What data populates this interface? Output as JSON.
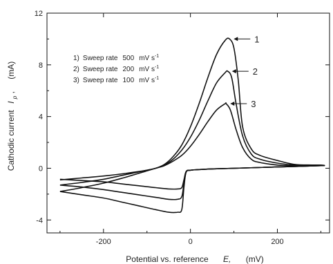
{
  "chart_data": {
    "type": "line",
    "title": "",
    "xlabel": {
      "text": "Potential vs. reference",
      "symbol": "E,",
      "unit": "(mV)"
    },
    "ylabel": {
      "text": "Cathodic current",
      "symbol": "I",
      "subscript": "p",
      "comma": ",",
      "unit": "(mA)"
    },
    "xlim": [
      -330,
      320
    ],
    "ylim": [
      -5,
      12
    ],
    "xticks": [
      -200,
      0,
      200
    ],
    "yticks": [
      -4,
      0,
      4,
      8,
      12
    ],
    "grid": false,
    "legend_position": "top-left",
    "legend": [
      {
        "number": "1)",
        "text": "Sweep rate",
        "value": "500",
        "unit": "mV s",
        "exp": "-1"
      },
      {
        "number": "2)",
        "text": "Sweep rate",
        "value": "200",
        "unit": "mV s",
        "exp": "-1"
      },
      {
        "number": "3)",
        "text": "Sweep rate",
        "value": "100",
        "unit": "mV s",
        "exp": "-1"
      }
    ],
    "annotations": [
      {
        "label": "1",
        "x": 90,
        "y": 10.0
      },
      {
        "label": "2",
        "x": 86,
        "y": 7.5
      },
      {
        "label": "3",
        "x": 82,
        "y": 5.0
      }
    ],
    "series": [
      {
        "forward": {
          "x": [
            -300,
            -250,
            -200,
            -150,
            -100,
            -80,
            -60,
            -40,
            -20,
            0,
            20,
            40,
            60,
            80,
            90,
            100,
            110,
            120,
            140,
            160,
            200,
            240,
            280,
            300
          ],
          "y": [
            -0.9,
            -0.75,
            -0.6,
            -0.4,
            -0.15,
            0.0,
            0.3,
            0.9,
            1.8,
            3.2,
            5.0,
            7.0,
            8.8,
            9.9,
            10.0,
            9.3,
            6.8,
            3.2,
            1.5,
            1.0,
            0.6,
            0.3,
            0.25,
            0.25
          ]
        },
        "reverse": {
          "x": [
            300,
            200,
            100,
            50,
            20,
            0,
            -10,
            -15,
            -20,
            -30,
            -50,
            -80,
            -120,
            -160,
            -200,
            -250,
            -300
          ],
          "y": [
            0.2,
            0.1,
            0.0,
            -0.05,
            -0.1,
            -0.15,
            -0.3,
            -1.5,
            -3.2,
            -3.4,
            -3.4,
            -3.2,
            -2.9,
            -2.6,
            -2.3,
            -2.05,
            -1.8
          ]
        }
      },
      {
        "forward": {
          "x": [
            -300,
            -250,
            -200,
            -150,
            -100,
            -80,
            -60,
            -40,
            -20,
            0,
            20,
            40,
            60,
            80,
            86,
            95,
            105,
            120,
            140,
            160,
            200,
            240,
            280,
            300
          ],
          "y": [
            -1.3,
            -1.1,
            -0.85,
            -0.5,
            -0.15,
            0.0,
            0.25,
            0.7,
            1.4,
            2.4,
            3.7,
            5.2,
            6.6,
            7.4,
            7.5,
            7.0,
            5.0,
            2.5,
            1.1,
            0.7,
            0.4,
            0.25,
            0.2,
            0.2
          ]
        },
        "reverse": {
          "x": [
            300,
            200,
            100,
            50,
            20,
            0,
            -10,
            -15,
            -20,
            -30,
            -50,
            -80,
            -120,
            -160,
            -200,
            -250,
            -300
          ],
          "y": [
            0.2,
            0.1,
            0.0,
            -0.05,
            -0.1,
            -0.15,
            -0.3,
            -1.2,
            -2.2,
            -2.4,
            -2.4,
            -2.25,
            -2.05,
            -1.85,
            -1.65,
            -1.45,
            -1.3
          ]
        }
      },
      {
        "forward": {
          "x": [
            -300,
            -250,
            -200,
            -150,
            -100,
            -80,
            -60,
            -40,
            -20,
            0,
            20,
            40,
            60,
            80,
            82,
            92,
            105,
            120,
            140,
            160,
            200,
            240,
            280,
            300
          ],
          "y": [
            -1.8,
            -1.5,
            -1.15,
            -0.7,
            -0.2,
            0.0,
            0.2,
            0.55,
            1.0,
            1.7,
            2.6,
            3.6,
            4.5,
            5.0,
            5.0,
            4.5,
            3.0,
            1.6,
            0.7,
            0.45,
            0.25,
            0.2,
            0.2,
            0.2
          ]
        },
        "reverse": {
          "x": [
            300,
            200,
            100,
            50,
            20,
            0,
            -10,
            -15,
            -20,
            -30,
            -50,
            -80,
            -120,
            -160,
            -200,
            -250,
            -300
          ],
          "y": [
            0.2,
            0.1,
            0.0,
            -0.05,
            -0.1,
            -0.15,
            -0.25,
            -0.9,
            -1.5,
            -1.6,
            -1.6,
            -1.5,
            -1.35,
            -1.2,
            -1.05,
            -0.95,
            -0.85
          ]
        }
      }
    ]
  }
}
